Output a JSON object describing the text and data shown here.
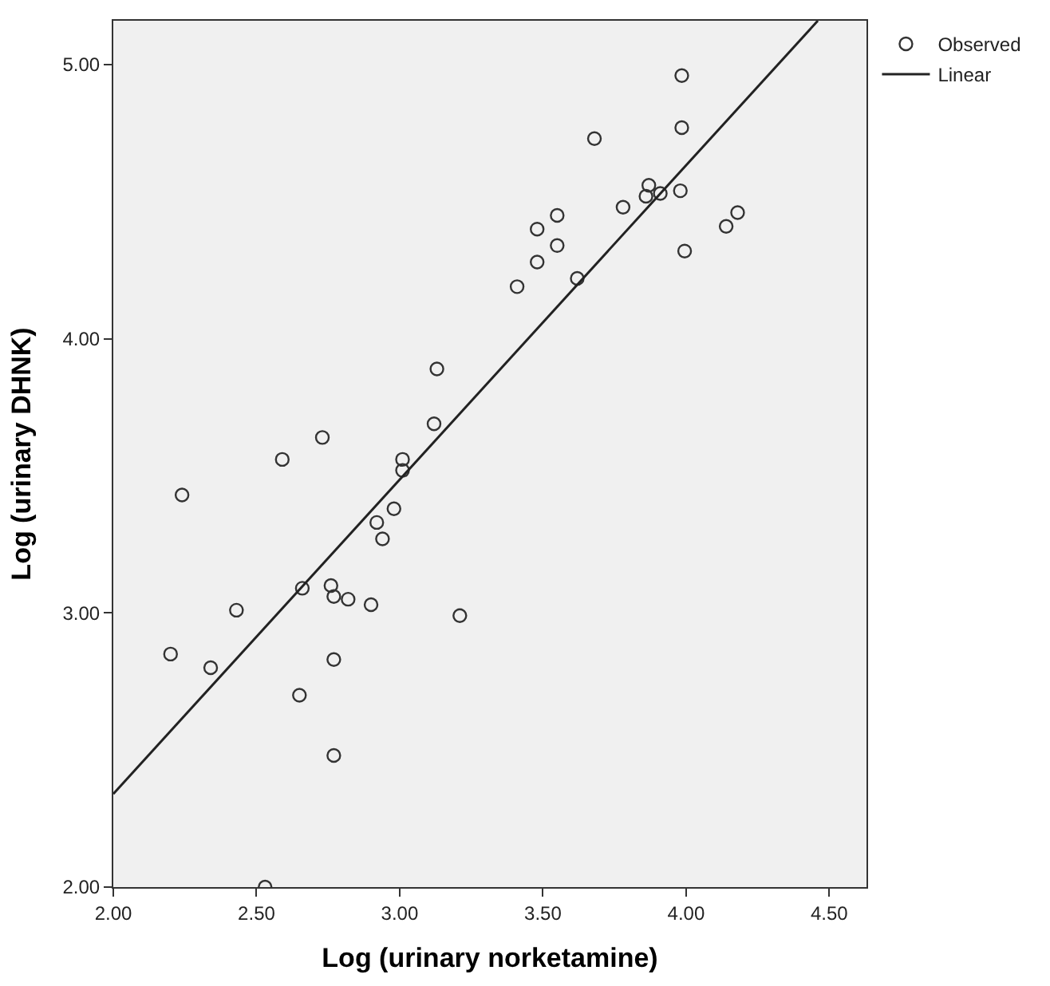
{
  "chart_data": {
    "type": "scatter",
    "xlabel": "Log (urinary norketamine)",
    "ylabel": "Log (urinary DHNK)",
    "xlim": [
      2.0,
      4.63
    ],
    "xticks": [
      {
        "value": 2,
        "label": "2.00"
      },
      {
        "value": 2.5,
        "label": "2.50"
      },
      {
        "value": 3,
        "label": "3.00"
      },
      {
        "value": 3.5,
        "label": "3.50"
      },
      {
        "value": 4,
        "label": "4.00"
      },
      {
        "value": 4.5,
        "label": "4.50"
      }
    ],
    "ylim": [
      2.0,
      5.16
    ],
    "yticks": [
      {
        "value": 2,
        "label": "2.00"
      },
      {
        "value": 3,
        "label": "3.00"
      },
      {
        "value": 4,
        "label": "4.00"
      },
      {
        "value": 5,
        "label": "5.00"
      }
    ],
    "grid": false,
    "legend": "top right",
    "marker": "circle",
    "series": [
      {
        "name": "Observed",
        "color": "#333333",
        "x": [
          3.985,
          3.985,
          3.68,
          3.87,
          3.86,
          3.91,
          3.98,
          3.78,
          3.55,
          3.48,
          3.55,
          3.48,
          3.995,
          4.14,
          4.18,
          3.62,
          3.41,
          3.13,
          3.12,
          2.73,
          2.59,
          3.01,
          3.01,
          2.24,
          2.98,
          2.92,
          2.94,
          2.66,
          2.76,
          2.77,
          2.82,
          2.9,
          2.43,
          3.21,
          2.2,
          2.34,
          2.77,
          2.65,
          2.77,
          2.53
        ],
        "values": [
          4.96,
          4.77,
          4.73,
          4.56,
          4.52,
          4.53,
          4.54,
          4.48,
          4.45,
          4.4,
          4.34,
          4.28,
          4.32,
          4.41,
          4.46,
          4.22,
          4.19,
          3.89,
          3.69,
          3.64,
          3.56,
          3.56,
          3.52,
          3.43,
          3.38,
          3.33,
          3.27,
          3.09,
          3.1,
          3.06,
          3.05,
          3.03,
          3.01,
          2.99,
          2.85,
          2.8,
          2.83,
          2.7,
          2.48,
          2.0
        ]
      },
      {
        "name": "Linear",
        "type": "line",
        "color": "#222222",
        "x": [
          2.0,
          4.46
        ],
        "values": [
          2.34,
          5.16
        ],
        "marker": "none",
        "line_style": "solid"
      }
    ]
  }
}
